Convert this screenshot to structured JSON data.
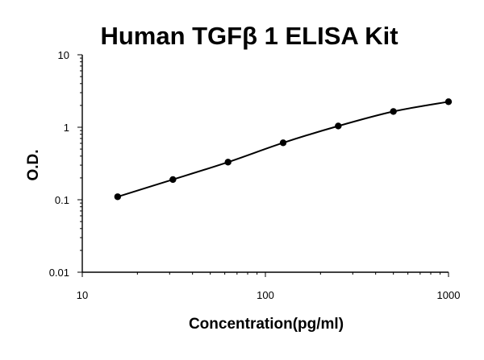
{
  "chart_data": {
    "type": "scatter",
    "title": "Human TGFβ 1 ELISA Kit",
    "xlabel": "Concentration(pg/ml)",
    "ylabel": "O.D.",
    "xscale": "log",
    "yscale": "log",
    "xlim": [
      10,
      1000
    ],
    "ylim": [
      0.01,
      10
    ],
    "x_ticks": [
      "10",
      "100",
      "1000"
    ],
    "y_ticks": [
      "0.01",
      "0.1",
      "1",
      "10"
    ],
    "grid": false,
    "legend": "none",
    "series": [
      {
        "x": [
          15.6,
          31.25,
          62.5,
          125,
          250,
          500,
          1000
        ],
        "y": [
          0.11,
          0.19,
          0.33,
          0.61,
          1.04,
          1.65,
          2.25
        ],
        "marker": "circle",
        "curve": "smooth fit line",
        "color": "#000000"
      }
    ]
  }
}
